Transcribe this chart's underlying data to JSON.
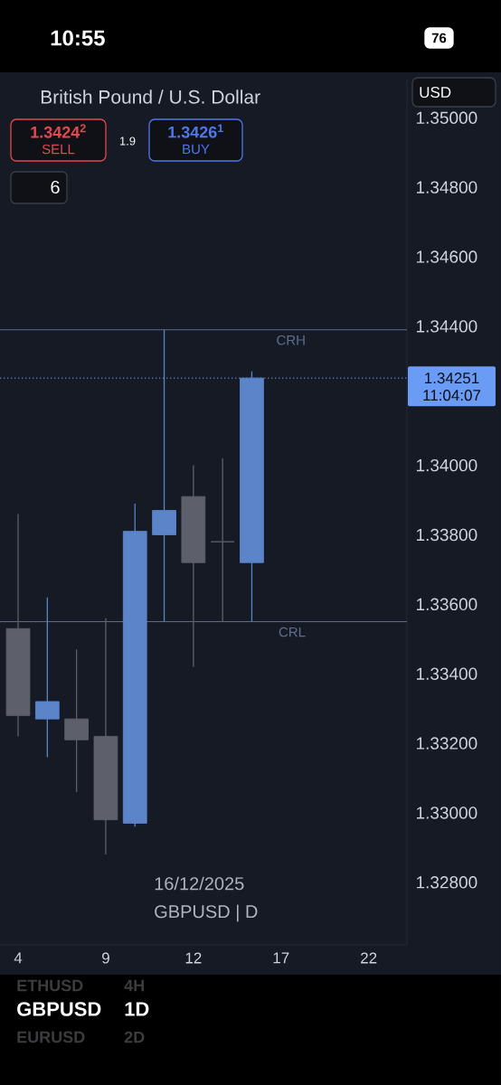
{
  "chart_data": {
    "type": "candlestick",
    "title": "British Pound / U.S. Dollar",
    "categories": [
      "4",
      null,
      null,
      "9",
      null,
      null,
      "12",
      null,
      null,
      "17",
      null,
      null,
      "22"
    ],
    "ohlc": [
      [
        1.3353,
        1.3386,
        1.3322,
        1.3328
      ],
      [
        1.3327,
        1.3362,
        1.3316,
        1.3332
      ],
      [
        1.3327,
        1.3347,
        1.3306,
        1.3321
      ],
      [
        1.3322,
        1.3356,
        1.3288,
        1.3298
      ],
      [
        1.3297,
        1.3389,
        1.3296,
        1.3381
      ],
      [
        1.338,
        1.3439,
        1.3355,
        1.3387
      ],
      [
        1.3391,
        1.34,
        1.3342,
        1.3372
      ],
      [
        1.3378,
        1.3402,
        1.3355,
        1.3378
      ],
      [
        1.3372,
        1.3427,
        1.3355,
        1.34251
      ],
      null,
      null,
      null,
      null
    ],
    "colors": [
      "#5d606b",
      "#5b84c9",
      "#5d606b",
      "#5d606b",
      "#5b84c9",
      "#5b84c9",
      "#5d606b",
      "#5d606b",
      "#5b84c9",
      null,
      null,
      null,
      null
    ],
    "ylim": [
      1.3262,
      1.3511
    ],
    "yticks": [
      {
        "value": 1.328,
        "label": "1.32800"
      },
      {
        "value": 1.33,
        "label": "1.33000"
      },
      {
        "value": 1.332,
        "label": "1.33200"
      },
      {
        "value": 1.334,
        "label": "1.33400"
      },
      {
        "value": 1.336,
        "label": "1.33600"
      },
      {
        "value": 1.338,
        "label": "1.33800"
      },
      {
        "value": 1.34,
        "label": "1.34000"
      },
      {
        "value": 1.344,
        "label": "1.34400"
      },
      {
        "value": 1.346,
        "label": "1.34600"
      },
      {
        "value": 1.348,
        "label": "1.34800"
      },
      {
        "value": 1.35,
        "label": "1.35000"
      }
    ],
    "ref_lines": [
      {
        "axis": "y",
        "value": 1.3439,
        "label": "CRH",
        "color": "#5e6e8e",
        "line_style": "solid"
      },
      {
        "axis": "y",
        "value": 1.3355,
        "label": "CRL",
        "color": "#5e6e8e",
        "line_style": "solid"
      },
      {
        "axis": "y",
        "value": 1.34251,
        "label": "1.34251",
        "color": "#6a9cf5",
        "line_style": "dotted"
      }
    ],
    "annotations": [
      "10:55",
      "76",
      "USD",
      "1.3424$^{2}$",
      "SELL",
      "1.9",
      "1.3426$^{1}$",
      "BUY",
      "6",
      "16/12/2025",
      "GBPUSD | D",
      "ETHUSD",
      "4H",
      "GBPUSD",
      "1D",
      "EURUSD",
      "2D",
      "11:04:07"
    ]
  }
}
